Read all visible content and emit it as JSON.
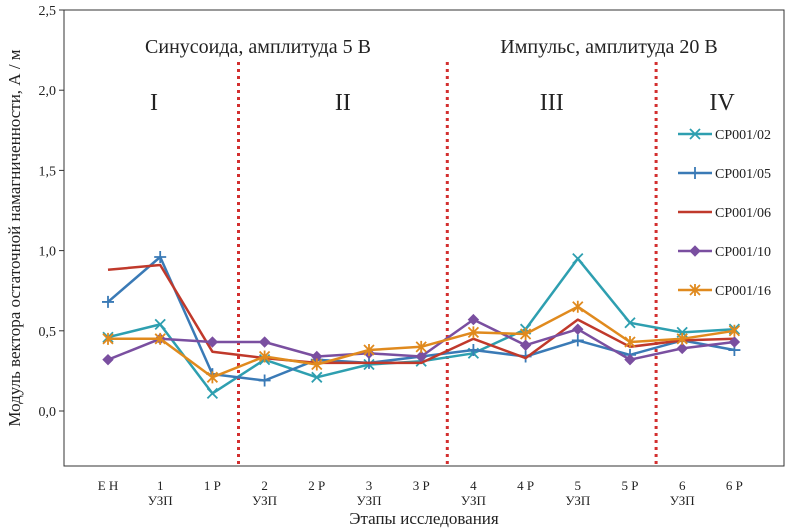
{
  "chart_data": {
    "type": "line",
    "xlabel": "Этапы исследования",
    "ylabel": "Модуль вектора остаточной намагниченности, А / м",
    "ylim": [
      -0.35,
      2.5
    ],
    "yticks": [
      "2,5",
      "2,0",
      "1,5",
      "1,0",
      "0,5",
      "0,0"
    ],
    "ytick_values": [
      2.5,
      2.0,
      1.5,
      1.0,
      0.5,
      0.0
    ],
    "categories": [
      [
        "Е Н",
        ""
      ],
      [
        "1",
        "УЗП"
      ],
      [
        "1 Р",
        ""
      ],
      [
        "2",
        "УЗП"
      ],
      [
        "2 Р",
        ""
      ],
      [
        "3",
        "УЗП"
      ],
      [
        "3 Р",
        ""
      ],
      [
        "4",
        "УЗП"
      ],
      [
        "4 Р",
        ""
      ],
      [
        "5",
        "УЗП"
      ],
      [
        "5 Р",
        ""
      ],
      [
        "6",
        "УЗП"
      ],
      [
        "6 Р",
        ""
      ]
    ],
    "sections": [
      {
        "title": "Синусоида, амплитуда 5 В"
      },
      {
        "title": "Импульс, амплитуда 20 В"
      }
    ],
    "regions": [
      "I",
      "II",
      "III",
      "IV"
    ],
    "divider_after_index": [
      2,
      6,
      10
    ],
    "divider_color": "#d32f2f",
    "series": [
      {
        "name": "CP001/02",
        "color": "#2e9fb0",
        "marker": "x",
        "values": [
          0.46,
          0.54,
          0.11,
          0.32,
          0.21,
          0.29,
          0.31,
          0.36,
          0.51,
          0.95,
          0.55,
          0.49,
          0.51
        ]
      },
      {
        "name": "CP001/05",
        "color": "#3a7ab6",
        "marker": "plus",
        "values": [
          0.68,
          0.96,
          0.23,
          0.19,
          0.32,
          0.3,
          0.34,
          0.38,
          0.34,
          0.44,
          0.35,
          0.44,
          0.38
        ]
      },
      {
        "name": "CP001/06",
        "color": "#c0392b",
        "marker": "none",
        "values": [
          0.88,
          0.91,
          0.37,
          0.33,
          0.3,
          0.3,
          0.3,
          0.45,
          0.33,
          0.57,
          0.4,
          0.44,
          0.45
        ]
      },
      {
        "name": "CP001/10",
        "color": "#7a4fa0",
        "marker": "diamond",
        "values": [
          0.32,
          0.45,
          0.43,
          0.43,
          0.34,
          0.36,
          0.34,
          0.57,
          0.41,
          0.51,
          0.32,
          0.39,
          0.43
        ]
      },
      {
        "name": "CP001/16",
        "color": "#e08a1e",
        "marker": "star",
        "values": [
          0.45,
          0.45,
          0.21,
          0.34,
          0.29,
          0.38,
          0.4,
          0.49,
          0.48,
          0.65,
          0.43,
          0.45,
          0.5
        ]
      }
    ]
  }
}
